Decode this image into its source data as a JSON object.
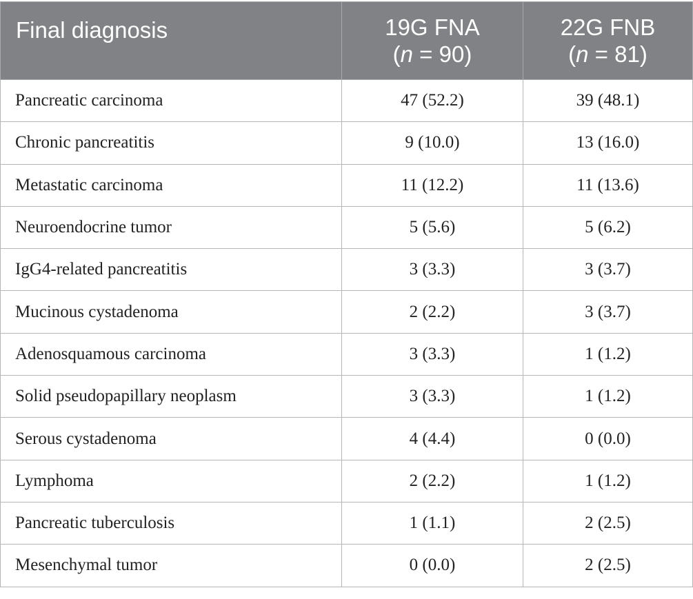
{
  "header": {
    "diagnosis": "Final diagnosis",
    "group1_name": "19G FNA",
    "group1_n_prefix": "(",
    "group1_n_symbol": "n",
    "group1_n_rest": " = 90)",
    "group2_name": "22G FNB",
    "group2_n_prefix": "(",
    "group2_n_symbol": "n",
    "group2_n_rest": " = 81)"
  },
  "rows": [
    {
      "diagnosis": "Pancreatic carcinoma",
      "fna": "47 (52.2)",
      "fnb": "39 (48.1)"
    },
    {
      "diagnosis": "Chronic pancreatitis",
      "fna": "9 (10.0)",
      "fnb": "13 (16.0)"
    },
    {
      "diagnosis": "Metastatic carcinoma",
      "fna": "11 (12.2)",
      "fnb": "11 (13.6)"
    },
    {
      "diagnosis": "Neuroendocrine tumor",
      "fna": "5 (5.6)",
      "fnb": "5 (6.2)"
    },
    {
      "diagnosis": "IgG4-related pancreatitis",
      "fna": "3 (3.3)",
      "fnb": "3 (3.7)"
    },
    {
      "diagnosis": "Mucinous cystadenoma",
      "fna": "2 (2.2)",
      "fnb": "3 (3.7)"
    },
    {
      "diagnosis": "Adenosquamous carcinoma",
      "fna": "3 (3.3)",
      "fnb": "1 (1.2)"
    },
    {
      "diagnosis": "Solid pseudopapillary neoplasm",
      "fna": "3 (3.3)",
      "fnb": "1 (1.2)"
    },
    {
      "diagnosis": "Serous cystadenoma",
      "fna": "4 (4.4)",
      "fnb": "0 (0.0)"
    },
    {
      "diagnosis": "Lymphoma",
      "fna": "2 (2.2)",
      "fnb": "1 (1.2)"
    },
    {
      "diagnosis": "Pancreatic tuberculosis",
      "fna": "1 (1.1)",
      "fnb": "2 (2.5)"
    },
    {
      "diagnosis": "Mesenchymal tumor",
      "fna": "0 (0.0)",
      "fnb": "2 (2.5)"
    }
  ]
}
